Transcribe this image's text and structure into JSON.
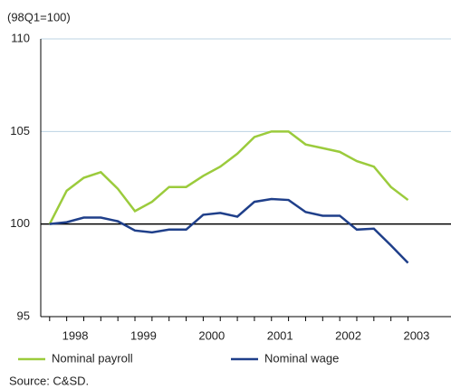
{
  "chart_data": {
    "type": "line",
    "y_unit_label": "(98Q1=100)",
    "x": [
      1998,
      1998.25,
      1998.5,
      1998.75,
      1999,
      1999.25,
      1999.5,
      1999.75,
      2000,
      2000.25,
      2000.5,
      2000.75,
      2001,
      2001.25,
      2001.5,
      2001.75,
      2002,
      2002.25,
      2002.5,
      2002.75,
      2003,
      2003.25
    ],
    "series": [
      {
        "name": "Nominal payroll",
        "color": "#9bcb3c",
        "values": [
          100,
          101.8,
          102.5,
          102.8,
          101.9,
          100.7,
          101.2,
          102.0,
          102.0,
          102.6,
          103.1,
          103.8,
          104.7,
          105.0,
          105.0,
          104.3,
          104.1,
          103.9,
          103.4,
          103.1,
          102.0,
          101.3
        ]
      },
      {
        "name": "Nominal wage",
        "color": "#1f3f8a",
        "values": [
          100,
          100.1,
          100.35,
          100.35,
          100.15,
          99.65,
          99.55,
          99.7,
          99.7,
          100.5,
          100.6,
          100.4,
          101.2,
          101.35,
          101.3,
          100.65,
          100.45,
          100.45,
          99.7,
          99.75,
          98.85,
          97.9
        ]
      }
    ],
    "xlim": [
      1997.87,
      2003.88
    ],
    "xticks": [
      {
        "value": 1998.375,
        "label": "1998"
      },
      {
        "value": 1999.375,
        "label": "1999"
      },
      {
        "value": 2000.375,
        "label": "2000"
      },
      {
        "value": 2001.375,
        "label": "2001"
      },
      {
        "value": 2002.375,
        "label": "2002"
      },
      {
        "value": 2003.375,
        "label": "2003"
      }
    ],
    "ylim": [
      95,
      110
    ],
    "yticks": [
      95,
      100,
      105,
      110
    ],
    "baseline": 100,
    "grid": true,
    "source": "Source: C&SD."
  }
}
